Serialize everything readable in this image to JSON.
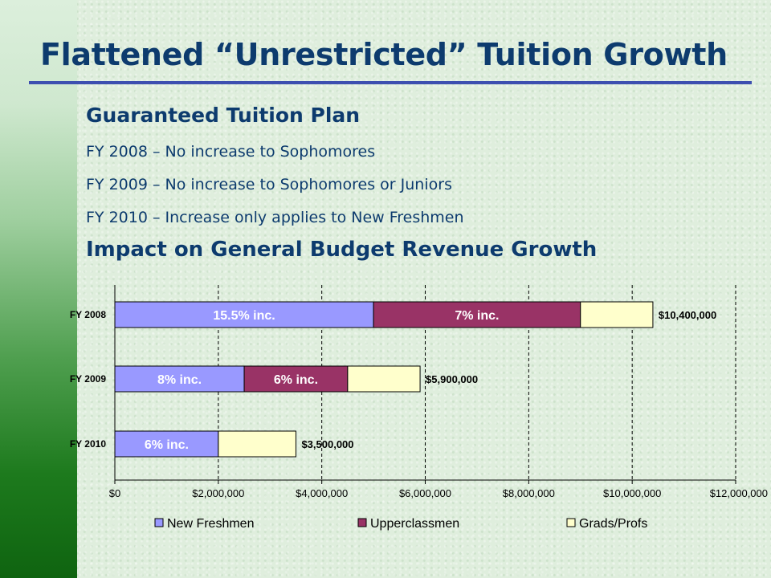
{
  "slide": {
    "title": "Flattened “Unrestricted” Tuition Growth",
    "heading1": "Guaranteed Tuition Plan",
    "bullets": [
      "FY 2008 – No increase to Sophomores",
      "FY 2009 – No increase to Sophomores or Juniors",
      "FY 2010 – Increase only applies to New Freshmen"
    ],
    "heading2": "Impact on General Budget Revenue Growth"
  },
  "colors": {
    "title": "#0d3b6e",
    "rule": "#3d4fb0",
    "new_freshmen": "#9999ff",
    "upperclassmen": "#993366",
    "grads_profs": "#ffffcc"
  },
  "chart_data": {
    "type": "bar",
    "orientation": "horizontal",
    "stacked": true,
    "categories": [
      "FY 2008",
      "FY 2009",
      "FY 2010"
    ],
    "series": [
      {
        "name": "New Freshmen",
        "values": [
          5000000,
          2500000,
          2000000
        ],
        "labels": [
          "15.5% inc.",
          "8% inc.",
          "6% inc."
        ],
        "color": "#9999ff"
      },
      {
        "name": "Upperclassmen",
        "values": [
          4000000,
          2000000,
          0
        ],
        "labels": [
          "7% inc.",
          "6% inc.",
          ""
        ],
        "color": "#993366"
      },
      {
        "name": "Grads/Profs",
        "values": [
          1400000,
          1400000,
          1500000
        ],
        "labels": [
          "",
          "",
          ""
        ],
        "color": "#ffffcc"
      }
    ],
    "totals": [
      "$10,400,000",
      "$5,900,000",
      "$3,500,000"
    ],
    "xlim": [
      0,
      12000000
    ],
    "xticks": [
      0,
      2000000,
      4000000,
      6000000,
      8000000,
      10000000,
      12000000
    ],
    "xtick_labels": [
      "$0",
      "$2,000,000",
      "$4,000,000",
      "$6,000,000",
      "$8,000,000",
      "$10,000,000",
      "$12,000,000"
    ],
    "grid": "vertical-dashed",
    "legend_position": "bottom",
    "title": "",
    "xlabel": "",
    "ylabel": ""
  }
}
